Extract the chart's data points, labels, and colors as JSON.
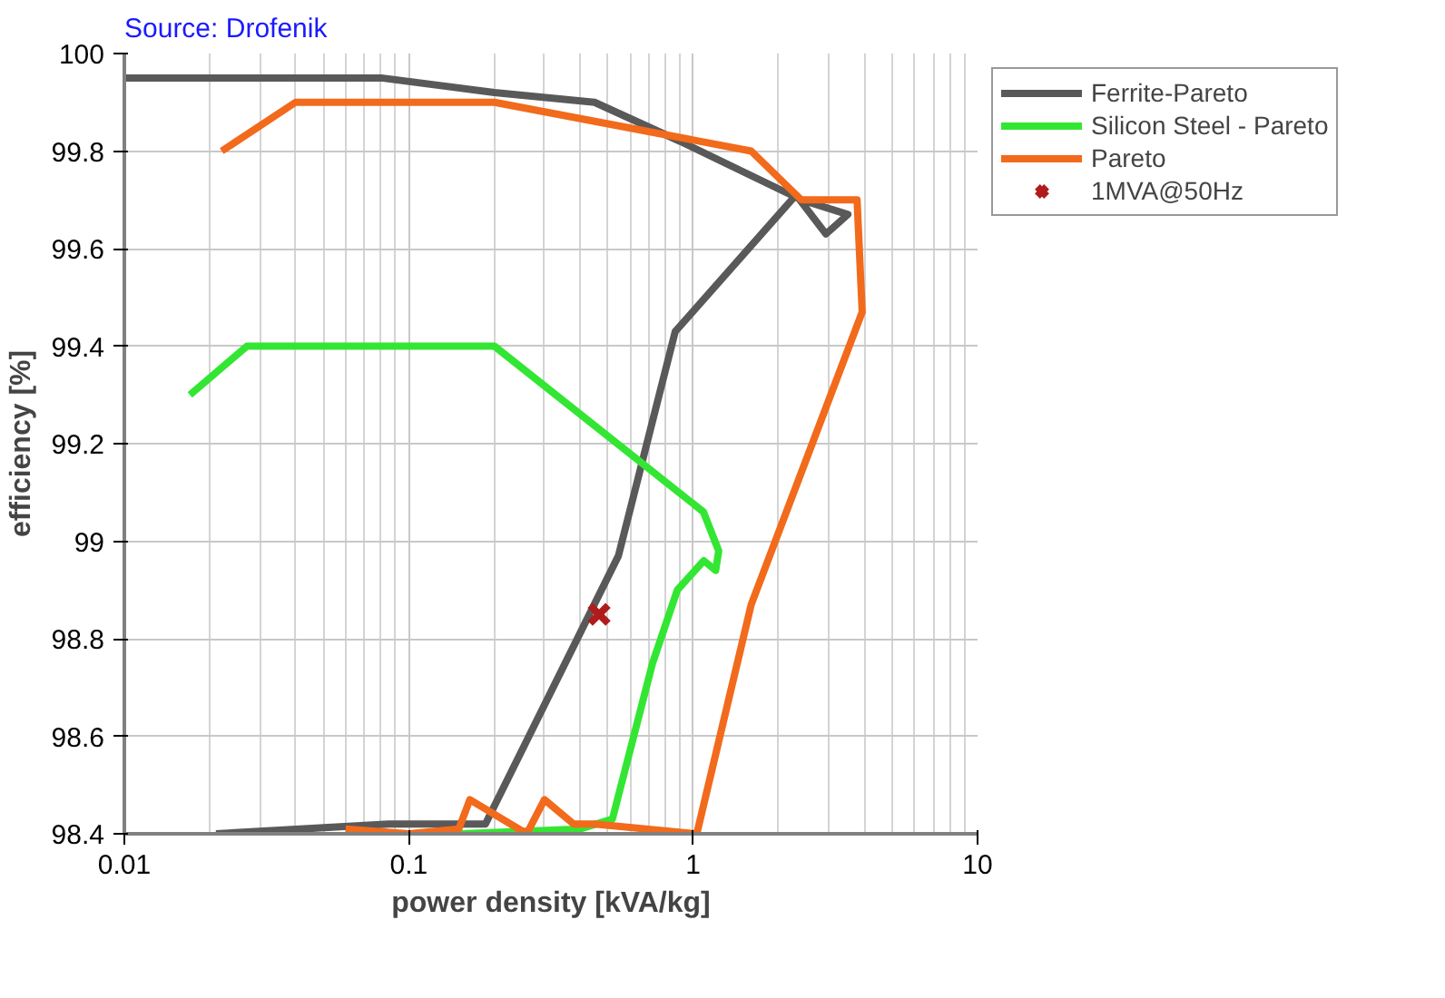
{
  "chart_data": {
    "type": "line",
    "xlabel": "power density [kVA/kg]",
    "ylabel": "efficiency [%]",
    "log": "x",
    "xlim": [
      0.01,
      10
    ],
    "ylim": [
      98.4,
      100
    ],
    "xticks": [
      0.01,
      0.1,
      1,
      10
    ],
    "yticks": [
      98.4,
      98.6,
      98.8,
      99,
      99.2,
      99.4,
      99.6,
      99.8,
      100
    ],
    "grid": true,
    "legend": "top right",
    "annotations": [
      "Source: Drofenik"
    ],
    "series": [
      {
        "name": "Ferrite-Pareto",
        "color": "#595959",
        "x": [
          0.01,
          0.08,
          0.2,
          0.45,
          0.9,
          2.4,
          3.5,
          2.93,
          2.3,
          0.865,
          0.546,
          0.186,
          0.085,
          0.021
        ],
        "values": [
          99.95,
          99.95,
          99.92,
          99.9,
          99.82,
          99.7,
          99.67,
          99.63,
          99.71,
          99.43,
          98.97,
          98.42,
          98.42,
          98.4
        ]
      },
      {
        "name": "Silicon Steel - Pareto",
        "color": "#33e633",
        "x": [
          0.017,
          0.027,
          0.2,
          1.087,
          1.23,
          1.2,
          1.09,
          0.88,
          0.72,
          0.52,
          0.4,
          0.15
        ],
        "values": [
          99.3,
          99.4,
          99.4,
          99.06,
          98.98,
          98.94,
          98.96,
          98.9,
          98.75,
          98.43,
          98.41,
          98.4
        ]
      },
      {
        "name": "Pareto",
        "color": "#f26a1b",
        "x": [
          0.022,
          0.04,
          0.2,
          1.6,
          2.4,
          3.77,
          3.93,
          1.6,
          1.03,
          0.45,
          0.38,
          0.3,
          0.26,
          0.164,
          0.15,
          0.1,
          0.06
        ],
        "values": [
          99.8,
          99.9,
          99.9,
          99.8,
          99.7,
          99.7,
          99.47,
          98.87,
          98.4,
          98.42,
          98.42,
          98.47,
          98.4,
          98.47,
          98.41,
          98.4,
          98.41
        ]
      },
      {
        "name": "1MVA@50Hz",
        "type": "scatter",
        "color": "#b01c1c",
        "marker": "cross",
        "x": [
          0.467
        ],
        "values": [
          98.85
        ]
      }
    ]
  }
}
